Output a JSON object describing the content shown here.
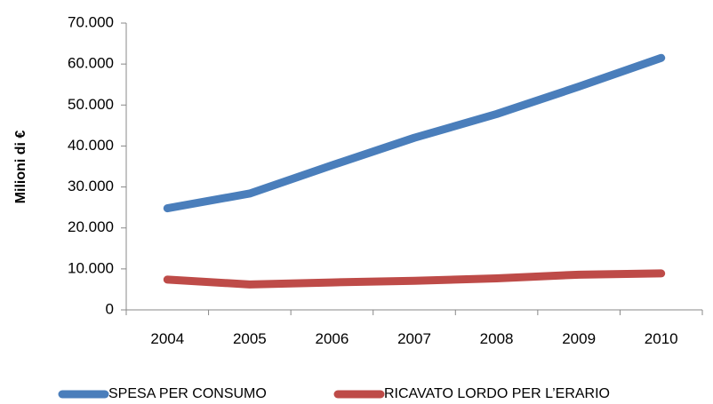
{
  "chart_data": {
    "type": "line",
    "x": [
      2004,
      2005,
      2006,
      2007,
      2008,
      2009,
      2010
    ],
    "categories": [
      "2004",
      "2005",
      "2006",
      "2007",
      "2008",
      "2009",
      "2010"
    ],
    "series": [
      {
        "name": "SPESA PER CONSUMO",
        "color": "#4a7ebb",
        "values": [
          24800,
          28400,
          35300,
          42000,
          47800,
          54500,
          61500
        ]
      },
      {
        "name": "RICAVATO LORDO PER L’ERARIO",
        "color": "#be4b48",
        "values": [
          7400,
          6200,
          6700,
          7100,
          7700,
          8600,
          8900
        ]
      }
    ],
    "ylabel": "Milioni di €",
    "xlabel": "",
    "ylim": [
      0,
      70000
    ],
    "yticks": [
      0,
      10000,
      20000,
      30000,
      40000,
      50000,
      60000,
      70000
    ],
    "ytick_labels": [
      "0",
      "10.000",
      "20.000",
      "30.000",
      "40.000",
      "50.000",
      "60.000",
      "70.000"
    ],
    "grid": false,
    "legend_position": "bottom"
  }
}
